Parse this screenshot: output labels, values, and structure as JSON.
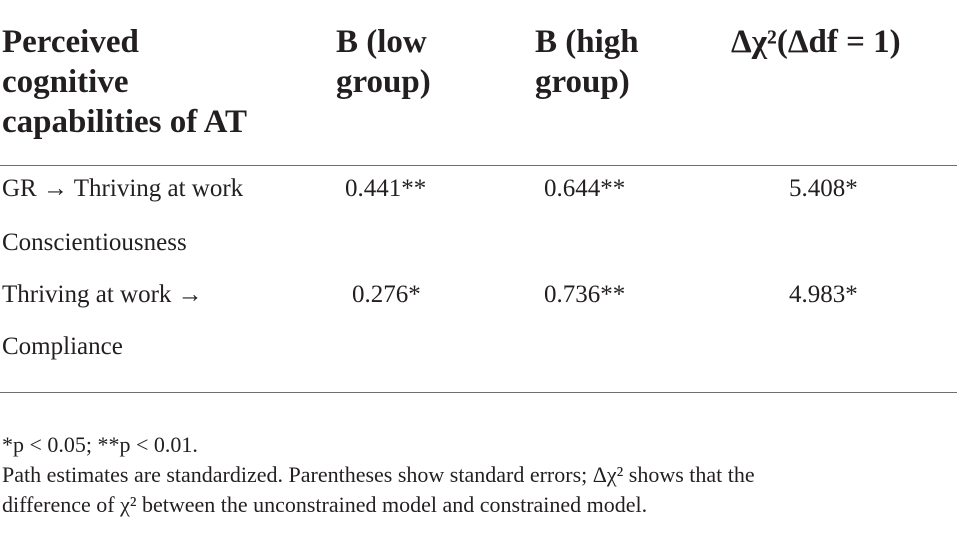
{
  "table": {
    "headers": [
      "Perceived cognitive capabilities of AT",
      "B (low group)",
      "B (high group)",
      "Δχ²(Δdf = 1)"
    ],
    "header_lines": {
      "col1": [
        "Perceived",
        "cognitive",
        "capabilities of AT"
      ],
      "col2": [
        "B (low",
        "group)"
      ],
      "col3": [
        "B (high",
        "group)"
      ],
      "col4": "Δχ²(Δdf = 1)"
    },
    "rows": [
      {
        "path": "GR → Thriving at work",
        "low": "0.441**",
        "high": "0.644**",
        "delta_chi2": "5.408*"
      },
      {
        "path": "Conscientiousness",
        "low": "",
        "high": "",
        "delta_chi2": ""
      },
      {
        "path": "Thriving at work →",
        "low": "0.276*",
        "high": "0.736**",
        "delta_chi2": "4.983*"
      },
      {
        "path": "Compliance",
        "low": "",
        "high": "",
        "delta_chi2": ""
      }
    ]
  },
  "notes": {
    "significance": "*p < 0.05; **p < 0.01.",
    "line1": "Path estimates are standardized. Parentheses show standard errors; Δχ² shows that the",
    "line2": "difference of χ² between the unconstrained model and constrained model."
  }
}
